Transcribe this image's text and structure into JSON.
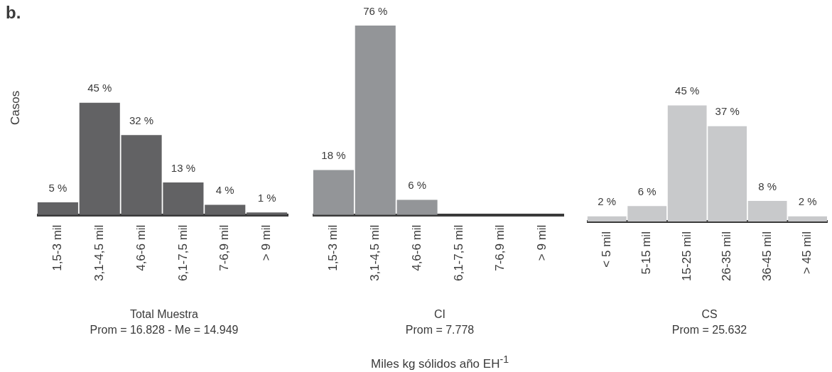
{
  "chart_data": [
    {
      "type": "bar",
      "title": "Total Muestra",
      "subtitle": "Prom = 16.828 - Me = 14.949",
      "ylabel": "Casos",
      "annotations": [
        "b."
      ],
      "tick_labels": "x",
      "color": "#626264",
      "categories": [
        "1,5-3 mil",
        "3,1-4,5 mil",
        "4,6-6 mil",
        "6,1-7,5 mil",
        "7-6,9 mil",
        "> 9 mil"
      ],
      "values": [
        5,
        45,
        32,
        13,
        4,
        1
      ],
      "value_labels": [
        "5 %",
        "45 %",
        "32 %",
        "13 %",
        "4 %",
        "1 %"
      ]
    },
    {
      "type": "bar",
      "title": "CI",
      "subtitle": "Prom = 7.778",
      "xlabel": "Miles kg sólidos año EH$^{-1}$",
      "tick_labels": "x",
      "color": "#939598",
      "categories": [
        "1,5-3 mil",
        "3,1-4,5 mil",
        "4,6-6 mil",
        "6,1-7,5 mil",
        "7-6,9 mil",
        "> 9 mil"
      ],
      "values": [
        18,
        76,
        6,
        0,
        0,
        0
      ],
      "value_labels": [
        "18 %",
        "76 %",
        "6 %",
        null,
        null,
        null
      ]
    },
    {
      "type": "bar",
      "title": "CS",
      "subtitle": "Prom = 25.632",
      "tick_labels": "x",
      "color": "#c8c9cb",
      "categories": [
        "< 5 mil",
        "5-15 mil",
        "15-25 mil",
        "26-35 mil",
        "36-45 mil",
        "> 45 mil"
      ],
      "values": [
        2,
        6,
        45,
        37,
        8,
        2
      ],
      "value_labels": [
        "2 %",
        "6 %",
        "45 %",
        "37 %",
        "8 %",
        "2 %"
      ]
    }
  ]
}
